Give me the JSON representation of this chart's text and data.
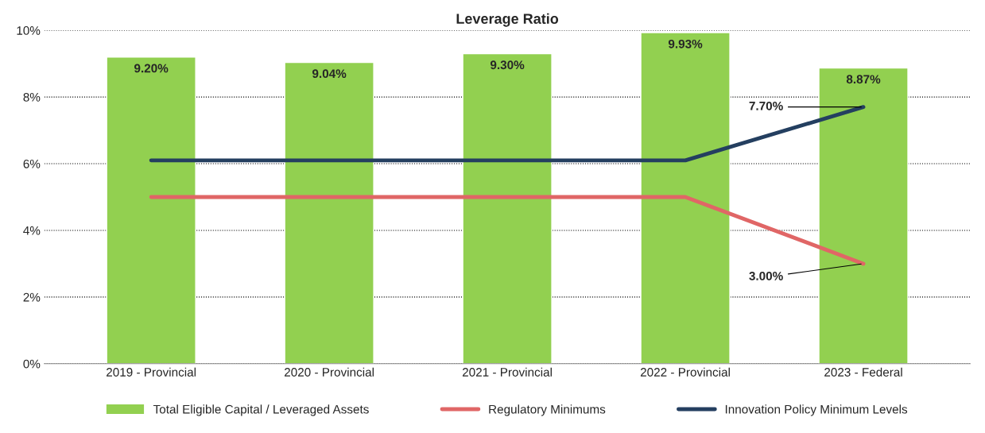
{
  "chart_data": {
    "type": "bar",
    "title": "Leverage Ratio",
    "categories": [
      "2019 - Provincial",
      "2020 - Provincial",
      "2021 - Provincial",
      "2022 - Provincial",
      "2023 - Federal"
    ],
    "series": [
      {
        "name": "Total Eligible Capital / Leveraged Assets",
        "color": "#92d050",
        "values": [
          9.2,
          9.04,
          9.3,
          9.93,
          8.87
        ],
        "value_labels": [
          "9.20%",
          "9.04%",
          "9.30%",
          "9.93%",
          "8.87%"
        ]
      },
      {
        "name": "Regulatory Minimums",
        "type": "line",
        "color": "#e06666",
        "values": [
          5.0,
          5.0,
          5.0,
          5.0,
          3.0
        ],
        "value_labels": [
          null,
          null,
          null,
          null,
          "3.00%"
        ]
      },
      {
        "name": "Innovation Policy Minimum Levels",
        "type": "line",
        "color": "#243f60",
        "values": [
          6.1,
          6.1,
          6.1,
          6.1,
          7.7
        ],
        "value_labels": [
          null,
          null,
          null,
          null,
          "7.70%"
        ]
      }
    ],
    "ylim": [
      0,
      10
    ],
    "yticks": [
      {
        "value": 0,
        "label": "0%"
      },
      {
        "value": 2,
        "label": "2%"
      },
      {
        "value": 4,
        "label": "4%"
      },
      {
        "value": 6,
        "label": "6%"
      },
      {
        "value": 8,
        "label": "8%"
      },
      {
        "value": 10,
        "label": "10%"
      }
    ],
    "grid": "y",
    "legend": "bottom",
    "line_style": "solid",
    "marker": "none"
  }
}
